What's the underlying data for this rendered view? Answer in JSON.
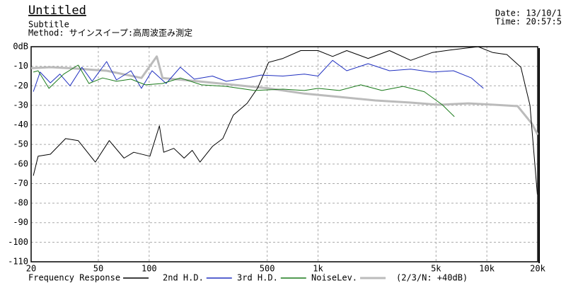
{
  "chart_data": {
    "type": "line",
    "title": "Untitled",
    "subtitle": "Subtitle",
    "method": "Method:  サインスイープ:高周波歪み測定",
    "date": "Date: 13/10/1",
    "time": "Time: 20:57:5",
    "legend_note": "(2/3/N: +40dB)",
    "xscale": "log",
    "grid": true,
    "xlim": [
      20,
      20000
    ],
    "ylim": [
      -110,
      0
    ],
    "xticks": [
      20,
      50,
      100,
      500,
      {
        "value": 1000,
        "label": "1k"
      },
      {
        "value": 5000,
        "label": "5k"
      },
      {
        "value": 10000,
        "label": "10k"
      },
      {
        "value": 20000,
        "label": "20k"
      }
    ],
    "yticks": [
      {
        "value": 0,
        "label": "0dB"
      },
      -10,
      -20,
      -30,
      -40,
      -50,
      -60,
      -70,
      -80,
      -90,
      -100,
      -110
    ],
    "series": [
      {
        "name": "NoiseLev.",
        "color": "#bbbbbb",
        "width": 3,
        "x": [
          20,
          26,
          34,
          56,
          90,
          111,
          120,
          194,
          315,
          510,
          830,
          1340,
          2190,
          3540,
          5200,
          7780,
          11200,
          15200,
          18500,
          20000
        ],
        "values": [
          -11,
          -10.5,
          -11,
          -12.3,
          -16,
          -5,
          -16,
          -17.7,
          -19.5,
          -21.3,
          -24,
          -25.7,
          -27.5,
          -28.6,
          -29.7,
          -29,
          -29.7,
          -30.4,
          -39.4,
          -45
        ]
      },
      {
        "name": "Frequency Response",
        "color": "#000000",
        "width": 1,
        "x": [
          20.6,
          22,
          26,
          32,
          38,
          48,
          58,
          71,
          81,
          101,
          115,
          122,
          140,
          161,
          180,
          200,
          237,
          273,
          315,
          380,
          440,
          510,
          620,
          790,
          1000,
          1220,
          1480,
          1980,
          2650,
          3540,
          4740,
          6340,
          8880,
          10850,
          13150,
          15900,
          18000,
          19900
        ],
        "values": [
          -66,
          -56,
          -55,
          -47,
          -48,
          -59,
          -48,
          -57,
          -54,
          -56,
          -40.5,
          -54,
          -52,
          -57,
          -53,
          -59,
          -51,
          -47,
          -35,
          -29,
          -21,
          -8,
          -6,
          -2,
          -2,
          -5,
          -2,
          -6,
          -2,
          -7,
          -3,
          -1.5,
          0,
          -3,
          -4,
          -10.5,
          -30,
          -75.6
        ]
      },
      {
        "name": "2nd H.D.",
        "color": "#2030c0",
        "width": 1,
        "x": [
          20.6,
          22.6,
          26,
          29.6,
          34,
          40,
          46,
          56,
          64,
          78,
          90,
          104,
          126,
          153,
          185,
          237,
          286,
          380,
          460,
          620,
          830,
          1000,
          1220,
          1480,
          1980,
          2650,
          3540,
          4740,
          6340,
          8100,
          9540
        ],
        "values": [
          -23,
          -13,
          -18.5,
          -14,
          -20,
          -10.5,
          -17.7,
          -7.6,
          -17,
          -12.3,
          -21.3,
          -12.3,
          -18.8,
          -10.5,
          -16.6,
          -15,
          -17.7,
          -16,
          -14.5,
          -15,
          -14,
          -15,
          -7,
          -12.3,
          -8.7,
          -12.3,
          -11.5,
          -13,
          -12.3,
          -16,
          -21.3
        ]
      },
      {
        "name": "3rd H.D.",
        "color": "#1a7a1a",
        "width": 1,
        "x": [
          20.6,
          22,
          25.5,
          31.2,
          38,
          44,
          53,
          64,
          78,
          95,
          120,
          153,
          204,
          286,
          420,
          620,
          830,
          1000,
          1340,
          1790,
          2390,
          3190,
          4260,
          5450,
          6420
        ],
        "values": [
          -13,
          -12.3,
          -21.3,
          -14,
          -9.4,
          -18.8,
          -16,
          -17.7,
          -16.6,
          -19.5,
          -18.8,
          -16,
          -19.5,
          -20.3,
          -22.4,
          -21.7,
          -22.4,
          -21.3,
          -22.4,
          -19.5,
          -22.4,
          -20.3,
          -23,
          -29.7,
          -35.8
        ]
      }
    ]
  }
}
